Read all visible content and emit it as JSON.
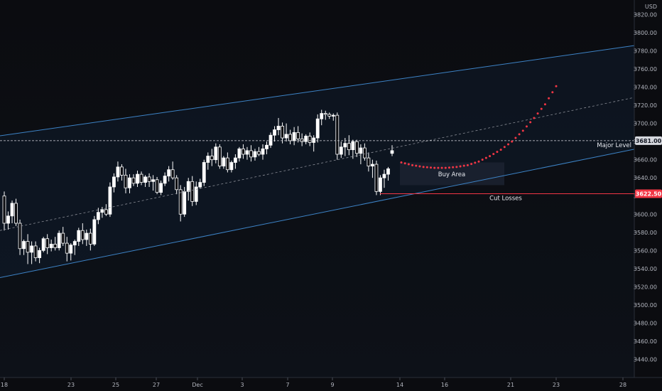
{
  "currency": "USD",
  "colors": {
    "background": "#0b0c10",
    "channel": "#3d83c6",
    "midline": "#8a8d96",
    "candle_up": "#ffffff",
    "candle_down": "#ffffff",
    "major_level": "#d6d8de",
    "cut_losses": "#f23645",
    "projection": "#f23645",
    "buy_zone": "#1c2230"
  },
  "annotations": {
    "major_level": "Major Level",
    "buy_area": "Buy Area",
    "cut_losses": "Cut Losses"
  },
  "price_badges": {
    "major_level": "3681.00",
    "cut_losses": "3622.50"
  },
  "chart_data": {
    "type": "candlestick",
    "y_axis_unit": "USD",
    "ylim": [
      3428,
      3834
    ],
    "y_ticks": [
      3820,
      3800,
      3780,
      3760,
      3740,
      3720,
      3700,
      3680,
      3660,
      3640,
      3620,
      3600,
      3580,
      3560,
      3540,
      3520,
      3500,
      3480,
      3460,
      3440
    ],
    "x_ticks": [
      "18",
      "23",
      "25",
      "27",
      "Dec",
      "3",
      "7",
      "9",
      "14",
      "16",
      "21",
      "23",
      "28"
    ],
    "major_level": 3681,
    "cut_losses": 3622.5,
    "channel": {
      "upper": [
        [
          "18",
          3687
        ],
        [
          "28",
          3784
        ]
      ],
      "lower": [
        [
          "18",
          3531
        ],
        [
          "28",
          3669
        ]
      ],
      "middle": [
        [
          "18",
          3583
        ],
        [
          "28",
          3726
        ]
      ]
    },
    "buy_area": {
      "price_from": 3632,
      "price_to": 3657,
      "date_from": "14",
      "date_to": "21"
    },
    "projection_path": [
      3657,
      3654,
      3652,
      3651,
      3651,
      3652,
      3654,
      3658,
      3664,
      3671,
      3680,
      3692,
      3706,
      3721,
      3741
    ],
    "candles": [
      [
        3620,
        3625,
        3582,
        3590
      ],
      [
        3590,
        3603,
        3583,
        3598
      ],
      [
        3598,
        3615,
        3590,
        3612
      ],
      [
        3612,
        3617,
        3587,
        3590
      ],
      [
        3590,
        3594,
        3555,
        3562
      ],
      [
        3562,
        3572,
        3555,
        3570
      ],
      [
        3570,
        3578,
        3545,
        3558
      ],
      [
        3558,
        3570,
        3545,
        3565
      ],
      [
        3565,
        3570,
        3548,
        3552
      ],
      [
        3552,
        3563,
        3546,
        3560
      ],
      [
        3560,
        3575,
        3558,
        3573
      ],
      [
        3573,
        3578,
        3556,
        3563
      ],
      [
        3563,
        3572,
        3559,
        3567
      ],
      [
        3567,
        3575,
        3560,
        3563
      ],
      [
        3563,
        3582,
        3560,
        3579
      ],
      [
        3579,
        3586,
        3565,
        3568
      ],
      [
        3568,
        3575,
        3548,
        3557
      ],
      [
        3557,
        3568,
        3549,
        3566
      ],
      [
        3566,
        3572,
        3555,
        3570
      ],
      [
        3570,
        3585,
        3565,
        3582
      ],
      [
        3582,
        3590,
        3567,
        3572
      ],
      [
        3572,
        3583,
        3565,
        3579
      ],
      [
        3579,
        3584,
        3560,
        3567
      ],
      [
        3567,
        3598,
        3565,
        3594
      ],
      [
        3594,
        3607,
        3589,
        3602
      ],
      [
        3602,
        3608,
        3596,
        3605
      ],
      [
        3605,
        3611,
        3598,
        3600
      ],
      [
        3600,
        3635,
        3597,
        3630
      ],
      [
        3630,
        3645,
        3624,
        3641
      ],
      [
        3641,
        3658,
        3636,
        3652
      ],
      [
        3652,
        3655,
        3637,
        3643
      ],
      [
        3643,
        3650,
        3623,
        3629
      ],
      [
        3629,
        3644,
        3623,
        3640
      ],
      [
        3640,
        3644,
        3631,
        3634
      ],
      [
        3634,
        3648,
        3630,
        3644
      ],
      [
        3644,
        3647,
        3632,
        3635
      ],
      [
        3635,
        3643,
        3630,
        3641
      ],
      [
        3641,
        3645,
        3630,
        3636
      ],
      [
        3636,
        3643,
        3626,
        3638
      ],
      [
        3638,
        3641,
        3622,
        3624
      ],
      [
        3624,
        3637,
        3621,
        3634
      ],
      [
        3634,
        3646,
        3631,
        3642
      ],
      [
        3642,
        3653,
        3636,
        3649
      ],
      [
        3649,
        3658,
        3638,
        3640
      ],
      [
        3640,
        3643,
        3622,
        3627
      ],
      [
        3627,
        3632,
        3592,
        3600
      ],
      [
        3600,
        3630,
        3597,
        3625
      ],
      [
        3625,
        3640,
        3615,
        3636
      ],
      [
        3636,
        3642,
        3609,
        3614
      ],
      [
        3614,
        3636,
        3610,
        3630
      ],
      [
        3630,
        3639,
        3628,
        3635
      ],
      [
        3635,
        3660,
        3631,
        3657
      ],
      [
        3657,
        3668,
        3649,
        3664
      ],
      [
        3664,
        3672,
        3653,
        3660
      ],
      [
        3660,
        3678,
        3656,
        3674
      ],
      [
        3674,
        3677,
        3650,
        3653
      ],
      [
        3653,
        3664,
        3650,
        3662
      ],
      [
        3662,
        3668,
        3646,
        3649
      ],
      [
        3649,
        3659,
        3646,
        3657
      ],
      [
        3657,
        3666,
        3650,
        3662
      ],
      [
        3662,
        3674,
        3658,
        3672
      ],
      [
        3672,
        3677,
        3661,
        3666
      ],
      [
        3666,
        3674,
        3660,
        3670
      ],
      [
        3670,
        3676,
        3658,
        3663
      ],
      [
        3663,
        3672,
        3659,
        3669
      ],
      [
        3669,
        3674,
        3664,
        3666
      ],
      [
        3666,
        3677,
        3660,
        3672
      ],
      [
        3672,
        3680,
        3666,
        3676
      ],
      [
        3676,
        3690,
        3673,
        3687
      ],
      [
        3687,
        3697,
        3680,
        3693
      ],
      [
        3693,
        3706,
        3687,
        3697
      ],
      [
        3697,
        3701,
        3678,
        3684
      ],
      [
        3684,
        3700,
        3680,
        3688
      ],
      [
        3688,
        3693,
        3677,
        3681
      ],
      [
        3681,
        3696,
        3676,
        3690
      ],
      [
        3690,
        3697,
        3679,
        3683
      ],
      [
        3683,
        3689,
        3675,
        3680
      ],
      [
        3680,
        3688,
        3677,
        3686
      ],
      [
        3686,
        3690,
        3675,
        3679
      ],
      [
        3679,
        3687,
        3669,
        3684
      ],
      [
        3684,
        3710,
        3679,
        3705
      ],
      [
        3705,
        3715,
        3698,
        3711
      ],
      [
        3711,
        3714,
        3704,
        3710
      ],
      [
        3710,
        3712,
        3705,
        3708
      ],
      [
        3708,
        3711,
        3703,
        3709
      ],
      [
        3709,
        3712,
        3660,
        3666
      ],
      [
        3666,
        3680,
        3662,
        3674
      ],
      [
        3674,
        3684,
        3664,
        3678
      ],
      [
        3678,
        3687,
        3665,
        3671
      ],
      [
        3671,
        3682,
        3661,
        3680
      ],
      [
        3680,
        3682,
        3663,
        3667
      ],
      [
        3667,
        3677,
        3655,
        3673
      ],
      [
        3673,
        3678,
        3659,
        3662
      ],
      [
        3662,
        3668,
        3647,
        3653
      ],
      [
        3653,
        3660,
        3640,
        3655
      ],
      [
        3655,
        3659,
        3621,
        3625
      ],
      [
        3625,
        3643,
        3621,
        3640
      ],
      [
        3640,
        3649,
        3629,
        3644
      ],
      [
        3644,
        3652,
        3637,
        3650
      ],
      [
        3667,
        3676,
        3664,
        3670
      ]
    ]
  }
}
